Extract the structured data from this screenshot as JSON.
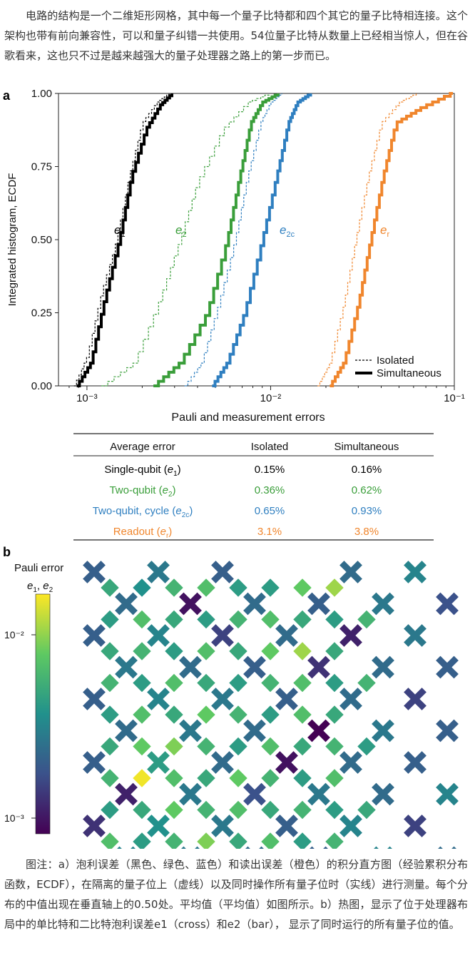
{
  "intro": "电路的结构是一个二维矩形网格，其中每一个量子比特都和四个其它的量子比特相连接。这个架构也带有前向兼容性，可以和量子纠错一共使用。54位量子比特从数量上已经相当惊人，但在谷歌看来，这也只不过是越来越强大的量子处理器之路上的第一步而已。",
  "panel_a": {
    "label": "a",
    "ylabel": "Integrated histogram, ECDF",
    "xlabel": "Pauli and measurement errors",
    "yticks": [
      "0.00",
      "0.25",
      "0.50",
      "0.75",
      "1.00"
    ],
    "xticks": [
      "10⁻³",
      "10⁻²",
      "10⁻¹"
    ],
    "legend": {
      "isolated": "Isolated",
      "simultaneous": "Simultaneous"
    },
    "curve_labels": [
      {
        "main": "e",
        "sub": "1"
      },
      {
        "main": "e",
        "sub": "2"
      },
      {
        "main": "e",
        "sub": "2c"
      },
      {
        "main": "e",
        "sub": "r"
      }
    ]
  },
  "chart_data": {
    "type": "line",
    "title": "",
    "xlabel": "Pauli and measurement errors",
    "ylabel": "Integrated histogram, ECDF",
    "xscale": "log",
    "xlim": [
      0.0007,
      0.1
    ],
    "ylim": [
      0,
      1
    ],
    "legend_position": "bottom-right",
    "series": [
      {
        "key": "e1",
        "name": "e1",
        "style": "Isolated",
        "color": "#000000",
        "x": [
          0.00085,
          0.001,
          0.0012,
          0.00145,
          0.0017,
          0.002,
          0.0024,
          0.0028
        ],
        "y": [
          0,
          0.1,
          0.32,
          0.5,
          0.72,
          0.9,
          0.97,
          1.0
        ]
      },
      {
        "key": "e1",
        "name": "e1",
        "style": "Simultaneous",
        "color": "#000000",
        "x": [
          0.00088,
          0.00105,
          0.00125,
          0.0015,
          0.00175,
          0.0021,
          0.0025,
          0.0029
        ],
        "y": [
          0,
          0.08,
          0.3,
          0.5,
          0.72,
          0.88,
          0.96,
          1.0
        ]
      },
      {
        "key": "e2",
        "name": "e2",
        "style": "Isolated",
        "color": "#3a9e3a",
        "x": [
          0.0012,
          0.0018,
          0.0025,
          0.0032,
          0.004,
          0.0055,
          0.0075,
          0.0098
        ],
        "y": [
          0,
          0.08,
          0.3,
          0.5,
          0.7,
          0.88,
          0.97,
          1.0
        ]
      },
      {
        "key": "e2",
        "name": "e2",
        "style": "Simultaneous",
        "color": "#3a9e3a",
        "x": [
          0.0023,
          0.0032,
          0.0045,
          0.0058,
          0.0068,
          0.0078,
          0.009,
          0.011
        ],
        "y": [
          0,
          0.08,
          0.25,
          0.5,
          0.72,
          0.9,
          0.97,
          1.0
        ]
      },
      {
        "key": "e2c",
        "name": "e2c",
        "style": "Isolated",
        "color": "#2f7fc0",
        "x": [
          0.0034,
          0.0042,
          0.0052,
          0.0064,
          0.0075,
          0.0088,
          0.01,
          0.0115
        ],
        "y": [
          0,
          0.08,
          0.28,
          0.5,
          0.72,
          0.9,
          0.97,
          1.0
        ]
      },
      {
        "key": "e2c",
        "name": "e2c",
        "style": "Simultaneous",
        "color": "#2f7fc0",
        "x": [
          0.0048,
          0.0058,
          0.0072,
          0.009,
          0.0108,
          0.0125,
          0.014,
          0.0165
        ],
        "y": [
          0,
          0.08,
          0.25,
          0.5,
          0.72,
          0.9,
          0.97,
          1.0
        ]
      },
      {
        "key": "er",
        "name": "er",
        "style": "Isolated",
        "color": "#f0862d",
        "x": [
          0.018,
          0.021,
          0.025,
          0.029,
          0.034,
          0.04,
          0.05,
          0.062
        ],
        "y": [
          0,
          0.08,
          0.28,
          0.5,
          0.72,
          0.9,
          0.97,
          1.0
        ]
      },
      {
        "key": "er",
        "name": "er",
        "style": "Simultaneous",
        "color": "#f0862d",
        "x": [
          0.021,
          0.025,
          0.03,
          0.035,
          0.041,
          0.048,
          0.065,
          0.095
        ],
        "y": [
          0,
          0.08,
          0.28,
          0.5,
          0.72,
          0.9,
          0.95,
          1.0
        ]
      }
    ]
  },
  "table": {
    "headers": [
      "Average error",
      "Isolated",
      "Simultaneous"
    ],
    "rows": [
      {
        "label": "Single-qubit (",
        "sym": "e",
        "sub": "1",
        "tail": ")",
        "isolated": "0.15%",
        "simultaneous": "0.16%",
        "color": "#000000"
      },
      {
        "label": "Two-qubit (",
        "sym": "e",
        "sub": "2",
        "tail": ")",
        "isolated": "0.36%",
        "simultaneous": "0.62%",
        "color": "#3a9e3a"
      },
      {
        "label": "Two-qubit, cycle (",
        "sym": "e",
        "sub": "2c",
        "tail": ")",
        "isolated": "0.65%",
        "simultaneous": "0.93%",
        "color": "#2f7fc0"
      },
      {
        "label": "Readout (",
        "sym": "e",
        "sub": "r",
        "tail": ")",
        "isolated": "3.1%",
        "simultaneous": "3.8%",
        "color": "#f0862d"
      }
    ]
  },
  "panel_b": {
    "label": "b",
    "colorbar_title": "Pauli error",
    "colorbar_sub": [
      {
        "main": "e",
        "sub": "1"
      },
      {
        "main": "e",
        "sub": "2"
      }
    ],
    "colorbar_ticks": [
      "10⁻²",
      "10⁻³"
    ],
    "crosses_rows": [
      [
        0.3,
        0.4,
        0.3,
        null,
        0.35,
        0.45
      ],
      [
        0.35,
        0.05,
        0.35,
        0.3,
        0.4,
        0.25
      ],
      [
        0.3,
        0.45,
        0.2,
        0.35,
        0.1,
        0.4
      ],
      [
        0.4,
        0.35,
        0.3,
        0.15,
        0.35,
        0.3
      ],
      [
        0.3,
        0.45,
        0.4,
        0.3,
        0.35,
        0.2
      ],
      [
        0.35,
        0.4,
        0.35,
        0.0,
        0.4,
        0.3
      ],
      [
        0.3,
        0.55,
        0.35,
        0.05,
        0.35,
        0.3
      ],
      [
        0.1,
        0.4,
        0.25,
        0.4,
        0.35,
        0.45
      ],
      [
        0.15,
        0.5,
        0.4,
        0.3,
        0.45,
        0.2
      ],
      [
        0.45,
        0.4,
        0.35,
        0.3,
        0.45,
        0.35
      ]
    ],
    "bars_rows": [
      [
        0.6,
        0.5,
        0.65,
        0.7,
        0.55,
        0.55,
        0.75,
        0.85
      ],
      [
        0.55,
        0.7,
        0.6,
        0.55,
        0.65,
        0.7,
        0.6,
        0.55,
        0.65
      ],
      [
        0.6,
        0.65,
        0.55,
        0.7,
        0.6,
        0.75,
        0.85,
        0.6
      ],
      [
        0.65,
        0.55,
        0.7,
        0.6,
        0.55,
        0.65,
        0.7,
        0.55,
        0.65
      ],
      [
        0.55,
        0.7,
        0.6,
        0.75,
        0.65,
        0.55,
        0.7,
        0.6
      ],
      [
        0.6,
        0.75,
        0.8,
        0.65,
        0.55,
        0.7,
        0.6,
        0.65,
        0.55
      ],
      [
        0.65,
        0.98,
        0.7,
        0.6,
        0.75,
        0.65,
        0.55,
        0.7
      ],
      [
        0.55,
        0.6,
        0.75,
        0.65,
        0.7,
        0.6,
        0.65,
        0.55,
        0.6
      ],
      [
        0.7,
        0.55,
        0.65,
        0.8,
        0.6,
        0.7,
        0.55,
        0.65
      ],
      [
        0.6,
        0.65,
        0.55,
        0.7,
        0.65,
        0.6,
        0.75,
        0.98,
        0.7
      ]
    ]
  },
  "caption": "图注：a）泡利误差（黑色、绿色、蓝色）和读出误差（橙色）的积分直方图（经验累积分布函数，ECDF），在隔离的量子位上（虚线）以及同时操作所有量子位时（实线）进行测量。每个分布的中值出现在垂直轴上的0.50处。平均值（平均值）如图所示。b）热图，显示了位于处理器布局中的单比特和二比特泡利误差e1（cross）和e2（bar）， 显示了同时运行的所有量子位的值。"
}
